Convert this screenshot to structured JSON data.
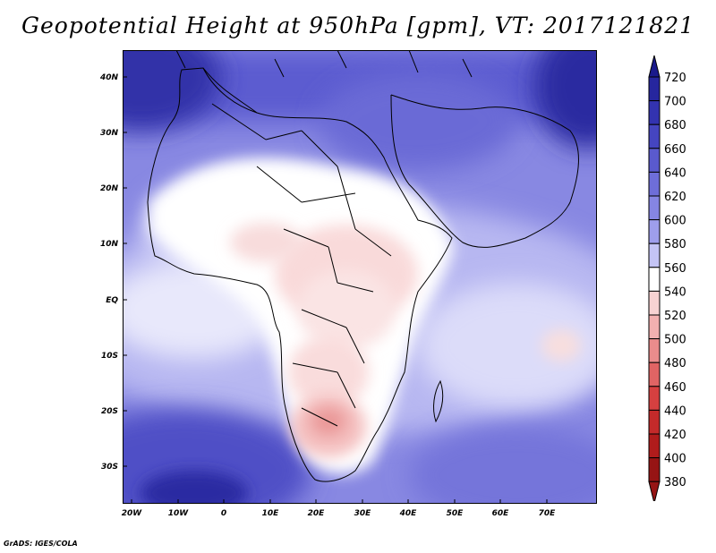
{
  "title": "Geopotential Height at 950hPa [gpm], VT: 2017121821",
  "credit": "GrADS: IGES/COLA",
  "map": {
    "variable": "Geopotential Height",
    "level": "950hPa",
    "units": "gpm",
    "valid_time": "2017121821",
    "lon_labels": [
      "20W",
      "10W",
      "0",
      "10E",
      "20E",
      "30E",
      "40E",
      "50E",
      "60E",
      "70E"
    ],
    "lat_labels": [
      "40N",
      "30N",
      "20N",
      "10N",
      "EQ",
      "10S",
      "20S",
      "30S"
    ]
  },
  "colorbar": {
    "levels": [
      "720",
      "700",
      "680",
      "660",
      "640",
      "620",
      "600",
      "580",
      "560",
      "540",
      "520",
      "500",
      "480",
      "460",
      "440",
      "420",
      "400",
      "380"
    ],
    "colors": [
      "#1a1a8c",
      "#26269e",
      "#3333b0",
      "#4545c0",
      "#5a5acd",
      "#6e6ed9",
      "#8585e3",
      "#9e9eec",
      "#c4c4f5",
      "#ffffff",
      "#f7d2d2",
      "#f2b0b0",
      "#ea8c8c",
      "#e06464",
      "#d64040",
      "#c42a2a",
      "#b01c1c",
      "#961414"
    ]
  }
}
